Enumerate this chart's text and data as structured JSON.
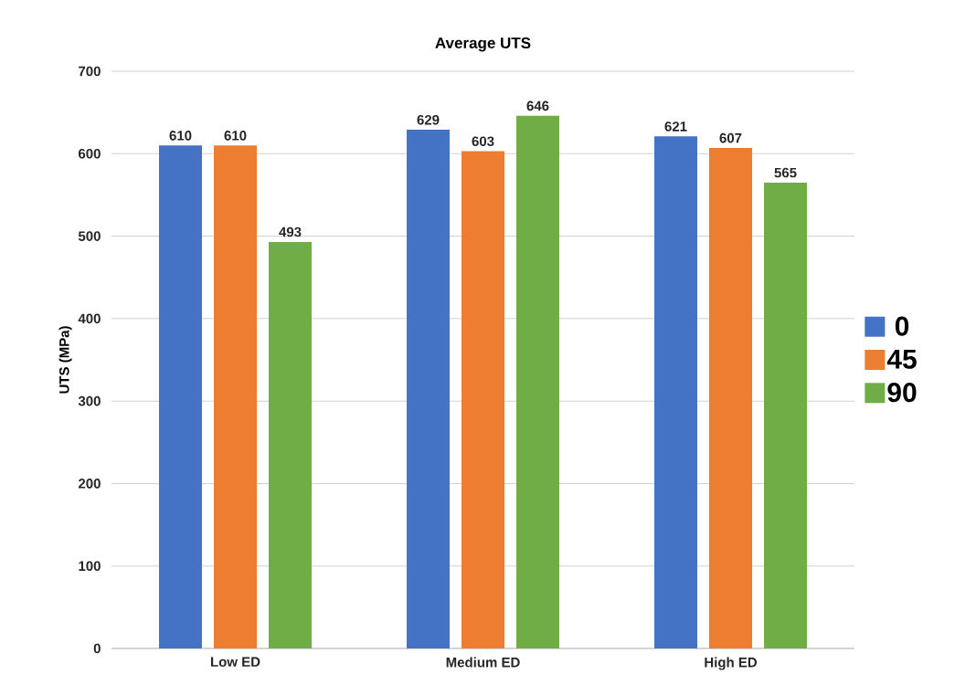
{
  "chart_data": {
    "type": "bar",
    "title": "Average UTS",
    "ylabel": "UTS (MPa)",
    "categories": [
      "Low ED",
      "Medium ED",
      "High ED"
    ],
    "series": [
      {
        "name": "0",
        "color": "#4472c4",
        "values": [
          610,
          629,
          621
        ]
      },
      {
        "name": "45",
        "color": "#ed7d31",
        "values": [
          610,
          603,
          607
        ]
      },
      {
        "name": "90",
        "color": "#70ad47",
        "values": [
          493,
          646,
          565
        ]
      }
    ],
    "ylim": [
      0,
      700
    ],
    "yticks": [
      0,
      100,
      200,
      300,
      400,
      500,
      600,
      700
    ],
    "grid": "y",
    "legend": "right",
    "data_labels": true
  }
}
